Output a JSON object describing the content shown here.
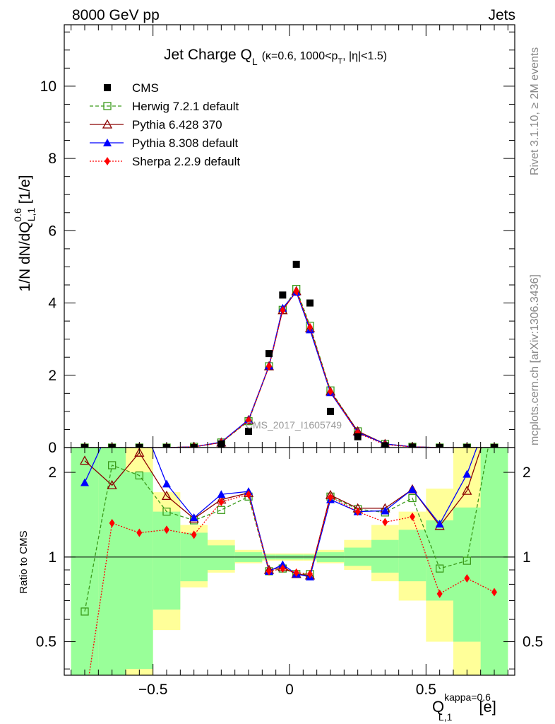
{
  "header": {
    "energy": "8000 GeV pp",
    "process": "Jets"
  },
  "side_text": {
    "rivet": "Rivet 3.1.10, ≥ 2M events",
    "source": "mcplots.cern.ch [arXiv:1306.3436]"
  },
  "watermark": "CMS_2017_I1605749",
  "colors": {
    "cms": "#000000",
    "herwig": "#3a9a1a",
    "pythia6": "#8b0000",
    "pythia8": "#0000ff",
    "sherpa": "#ff0000",
    "band_green": "#99ff99",
    "band_yellow": "#ffff99"
  },
  "chart_data": [
    {
      "type": "scatter",
      "panel": "main",
      "title": "Jet Charge Q",
      "title_sub": "L",
      "title_suffix": "(κ=0.6, 1000<p",
      "title_suffix_sub": "T",
      "title_suffix_end": ", |η|<1.5)",
      "ylabel": "1/N dN/dQ",
      "ylabel_sup": "0.6",
      "ylabel_sub": "L,1",
      "ylabel_unit": "[1/e]",
      "xlim": [
        -0.825,
        0.825
      ],
      "ylim": [
        0,
        11.7
      ],
      "y_ticks": [
        0,
        2,
        4,
        6,
        8,
        10
      ],
      "x": [
        -0.75,
        -0.65,
        -0.55,
        -0.45,
        -0.35,
        -0.25,
        -0.15,
        -0.075,
        -0.025,
        0.025,
        0.075,
        0.15,
        0.25,
        0.35,
        0.45,
        0.55,
        0.65,
        0.75
      ],
      "series": [
        {
          "name": "CMS",
          "key": "cms",
          "marker": "square-filled",
          "line": "none",
          "values": [
            0.0,
            0.0,
            0.0,
            0.0,
            0.0,
            0.1,
            0.45,
            2.6,
            4.22,
            5.07,
            4.0,
            1.0,
            0.3,
            0.05,
            0.01,
            0.0,
            0.0,
            0.0
          ]
        },
        {
          "name": "Herwig 7.2.1 default",
          "key": "herwig",
          "marker": "square-open",
          "line": "dashed",
          "values": [
            0.0,
            0.0,
            0.0,
            0.0,
            0.02,
            0.14,
            0.73,
            2.25,
            3.81,
            4.39,
            3.37,
            1.58,
            0.45,
            0.1,
            0.02,
            0.0,
            0.0,
            0.0
          ]
        },
        {
          "name": "Pythia 6.428 370",
          "key": "pythia6",
          "marker": "triangle-open",
          "line": "solid",
          "values": [
            0.0,
            0.0,
            0.0,
            0.0,
            0.02,
            0.14,
            0.76,
            2.25,
            3.8,
            4.33,
            3.3,
            1.55,
            0.45,
            0.1,
            0.02,
            0.0,
            0.0,
            0.0
          ]
        },
        {
          "name": "Pythia 8.308 default",
          "key": "pythia8",
          "marker": "triangle-filled",
          "line": "solid",
          "values": [
            0.0,
            0.0,
            0.0,
            0.0,
            0.02,
            0.15,
            0.77,
            2.26,
            3.86,
            4.3,
            3.26,
            1.52,
            0.42,
            0.1,
            0.02,
            0.0,
            0.0,
            0.0
          ]
        },
        {
          "name": "Sherpa 2.2.9 default",
          "key": "sherpa",
          "marker": "diamond-filled",
          "line": "dotted",
          "values": [
            0.0,
            0.0,
            0.0,
            0.0,
            0.02,
            0.14,
            0.75,
            2.25,
            3.8,
            4.33,
            3.33,
            1.55,
            0.4,
            0.08,
            0.02,
            0.0,
            0.0,
            0.0
          ]
        }
      ]
    },
    {
      "type": "line",
      "panel": "ratio",
      "ylabel": "Ratio to CMS",
      "xlabel": "Q",
      "xlabel_sup": "kappa=0.6",
      "xlabel_sub": "L,1",
      "xlabel_unit": "[e]",
      "xlim": [
        -0.825,
        0.825
      ],
      "ylim": [
        0.38,
        2.45
      ],
      "y_scale": "log",
      "reference_line": 1,
      "x_ticks": [
        -0.5,
        0,
        0.5
      ],
      "x_tick_labels": [
        "−0.5",
        "0",
        "0.5"
      ],
      "y_ticks": [
        0.5,
        1,
        2
      ],
      "y_tick_labels": [
        "0.5",
        "1",
        "2"
      ],
      "x": [
        -0.75,
        -0.65,
        -0.55,
        -0.45,
        -0.35,
        -0.25,
        -0.15,
        -0.075,
        -0.025,
        0.025,
        0.075,
        0.15,
        0.25,
        0.35,
        0.45,
        0.55,
        0.65,
        0.75
      ],
      "uncertainty_bands": {
        "bin_edges": [
          -0.8,
          -0.7,
          -0.6,
          -0.5,
          -0.4,
          -0.3,
          -0.2,
          -0.1,
          -0.05,
          0,
          0.05,
          0.1,
          0.2,
          0.3,
          0.4,
          0.5,
          0.6,
          0.7,
          0.8
        ],
        "yellow_lo": [
          0.38,
          0.38,
          0.38,
          0.55,
          0.78,
          0.88,
          0.95,
          0.97,
          0.97,
          0.97,
          0.97,
          0.95,
          0.9,
          0.82,
          0.7,
          0.5,
          0.38,
          0.38
        ],
        "yellow_hi": [
          2.45,
          2.45,
          2.45,
          1.7,
          1.3,
          1.15,
          1.06,
          1.03,
          1.03,
          1.03,
          1.03,
          1.06,
          1.15,
          1.3,
          1.45,
          1.75,
          2.45,
          2.45
        ],
        "green_lo": [
          0.38,
          0.38,
          0.4,
          0.65,
          0.82,
          0.9,
          0.96,
          0.98,
          0.98,
          0.98,
          0.98,
          0.96,
          0.93,
          0.88,
          0.82,
          0.7,
          0.5,
          0.38
        ],
        "green_hi": [
          2.45,
          2.45,
          2.0,
          1.45,
          1.22,
          1.1,
          1.04,
          1.02,
          1.02,
          1.02,
          1.02,
          1.04,
          1.08,
          1.15,
          1.25,
          1.35,
          1.5,
          2.45
        ]
      },
      "series": [
        {
          "name": "Herwig 7.2.1 default",
          "key": "herwig",
          "marker": "square-open",
          "line": "dashed",
          "values": [
            0.64,
            2.12,
            1.95,
            1.45,
            1.35,
            1.47,
            1.64,
            0.89,
            0.91,
            0.87,
            0.87,
            1.64,
            1.48,
            1.44,
            1.62,
            0.91,
            0.97,
            3.2
          ]
        },
        {
          "name": "Pythia 6.428 370",
          "key": "pythia6",
          "marker": "triangle-open",
          "line": "solid",
          "values": [
            2.2,
            1.8,
            2.35,
            1.65,
            1.37,
            1.6,
            1.69,
            0.9,
            0.92,
            0.87,
            0.86,
            1.66,
            1.49,
            1.49,
            1.74,
            1.29,
            1.72,
            3.4
          ]
        },
        {
          "name": "Pythia 8.308 default",
          "key": "pythia8",
          "marker": "triangle-filled",
          "line": "solid",
          "values": [
            1.84,
            3.0,
            3.2,
            1.82,
            1.38,
            1.67,
            1.71,
            0.89,
            0.94,
            0.87,
            0.85,
            1.6,
            1.45,
            1.46,
            1.74,
            1.31,
            1.97,
            3.6
          ]
        },
        {
          "name": "Sherpa 2.2.9 default",
          "key": "sherpa",
          "marker": "diamond-filled",
          "line": "dotted",
          "values": [
            0.3,
            1.32,
            1.22,
            1.25,
            1.2,
            1.57,
            1.67,
            0.89,
            0.91,
            0.88,
            0.87,
            1.63,
            1.45,
            1.33,
            1.39,
            0.74,
            0.84,
            0.75
          ]
        }
      ]
    }
  ]
}
